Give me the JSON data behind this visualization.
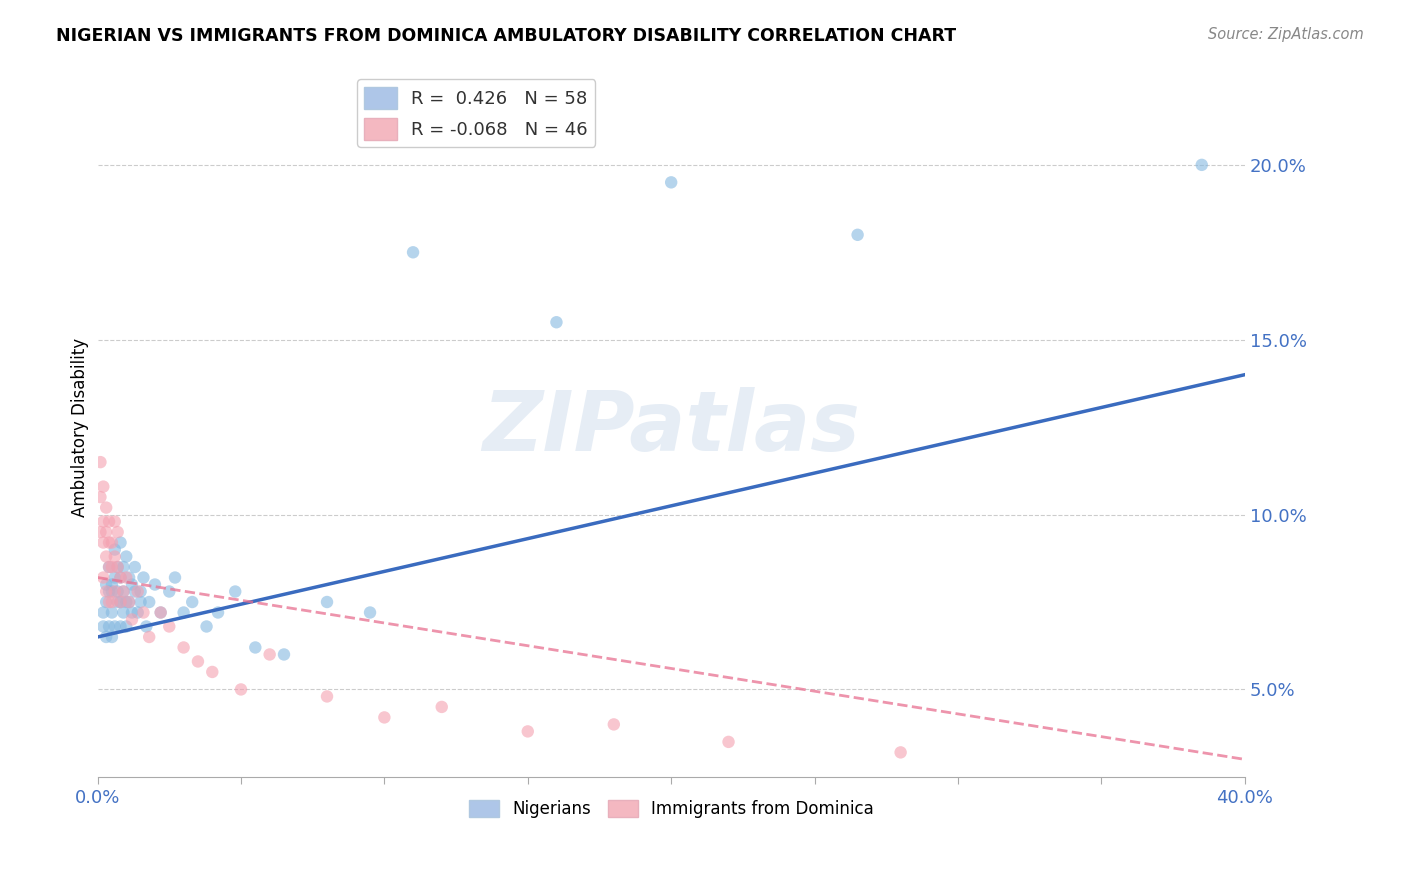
{
  "title": "NIGERIAN VS IMMIGRANTS FROM DOMINICA AMBULATORY DISABILITY CORRELATION CHART",
  "source": "Source: ZipAtlas.com",
  "ylabel": "Ambulatory Disability",
  "ytick_labels": [
    "5.0%",
    "10.0%",
    "15.0%",
    "20.0%"
  ],
  "ytick_values": [
    0.05,
    0.1,
    0.15,
    0.2
  ],
  "xlim": [
    0.0,
    0.4
  ],
  "ylim": [
    0.025,
    0.225
  ],
  "watermark": "ZIPatlas",
  "nigerian_color": "#85b8e0",
  "dominica_color": "#f4a0b0",
  "nigerian_alpha": 0.6,
  "dominica_alpha": 0.6,
  "trend_nigerian_color": "#3a6bbf",
  "trend_dominica_color": "#e87090",
  "trend_nig_x0": 0.0,
  "trend_nig_y0": 0.065,
  "trend_nig_x1": 0.4,
  "trend_nig_y1": 0.14,
  "trend_dom_x0": 0.0,
  "trend_dom_y0": 0.082,
  "trend_dom_x1": 0.4,
  "trend_dom_y1": 0.03,
  "nigerians_x": [
    0.002,
    0.002,
    0.003,
    0.003,
    0.003,
    0.004,
    0.004,
    0.004,
    0.005,
    0.005,
    0.005,
    0.005,
    0.006,
    0.006,
    0.006,
    0.007,
    0.007,
    0.007,
    0.008,
    0.008,
    0.008,
    0.008,
    0.009,
    0.009,
    0.009,
    0.01,
    0.01,
    0.01,
    0.011,
    0.011,
    0.012,
    0.012,
    0.013,
    0.013,
    0.014,
    0.015,
    0.015,
    0.016,
    0.017,
    0.018,
    0.02,
    0.022,
    0.025,
    0.027,
    0.03,
    0.033,
    0.038,
    0.042,
    0.048,
    0.055,
    0.065,
    0.08,
    0.095,
    0.11,
    0.16,
    0.2,
    0.265,
    0.385
  ],
  "nigerians_y": [
    0.072,
    0.068,
    0.075,
    0.08,
    0.065,
    0.078,
    0.085,
    0.068,
    0.08,
    0.072,
    0.078,
    0.065,
    0.09,
    0.082,
    0.068,
    0.078,
    0.085,
    0.075,
    0.082,
    0.092,
    0.075,
    0.068,
    0.078,
    0.085,
    0.072,
    0.088,
    0.075,
    0.068,
    0.082,
    0.075,
    0.08,
    0.072,
    0.085,
    0.078,
    0.072,
    0.078,
    0.075,
    0.082,
    0.068,
    0.075,
    0.08,
    0.072,
    0.078,
    0.082,
    0.072,
    0.075,
    0.068,
    0.072,
    0.078,
    0.062,
    0.06,
    0.075,
    0.072,
    0.175,
    0.155,
    0.195,
    0.18,
    0.2
  ],
  "dominica_x": [
    0.001,
    0.001,
    0.001,
    0.002,
    0.002,
    0.002,
    0.002,
    0.003,
    0.003,
    0.003,
    0.003,
    0.004,
    0.004,
    0.004,
    0.004,
    0.005,
    0.005,
    0.005,
    0.006,
    0.006,
    0.006,
    0.007,
    0.007,
    0.008,
    0.008,
    0.009,
    0.01,
    0.011,
    0.012,
    0.014,
    0.016,
    0.018,
    0.022,
    0.025,
    0.03,
    0.035,
    0.04,
    0.05,
    0.06,
    0.08,
    0.1,
    0.12,
    0.15,
    0.18,
    0.22,
    0.28
  ],
  "dominica_y": [
    0.115,
    0.105,
    0.095,
    0.108,
    0.098,
    0.092,
    0.082,
    0.102,
    0.095,
    0.088,
    0.078,
    0.098,
    0.092,
    0.085,
    0.075,
    0.092,
    0.085,
    0.075,
    0.098,
    0.088,
    0.078,
    0.085,
    0.095,
    0.082,
    0.075,
    0.078,
    0.082,
    0.075,
    0.07,
    0.078,
    0.072,
    0.065,
    0.072,
    0.068,
    0.062,
    0.058,
    0.055,
    0.05,
    0.06,
    0.048,
    0.042,
    0.045,
    0.038,
    0.04,
    0.035,
    0.032
  ],
  "legend_upper_labels": [
    "R =  0.426   N = 58",
    "R = -0.068   N = 46"
  ],
  "legend_lower_labels": [
    "Nigerians",
    "Immigrants from Dominica"
  ],
  "legend_nig_face": "#aec6e8",
  "legend_dom_face": "#f4b8c1"
}
